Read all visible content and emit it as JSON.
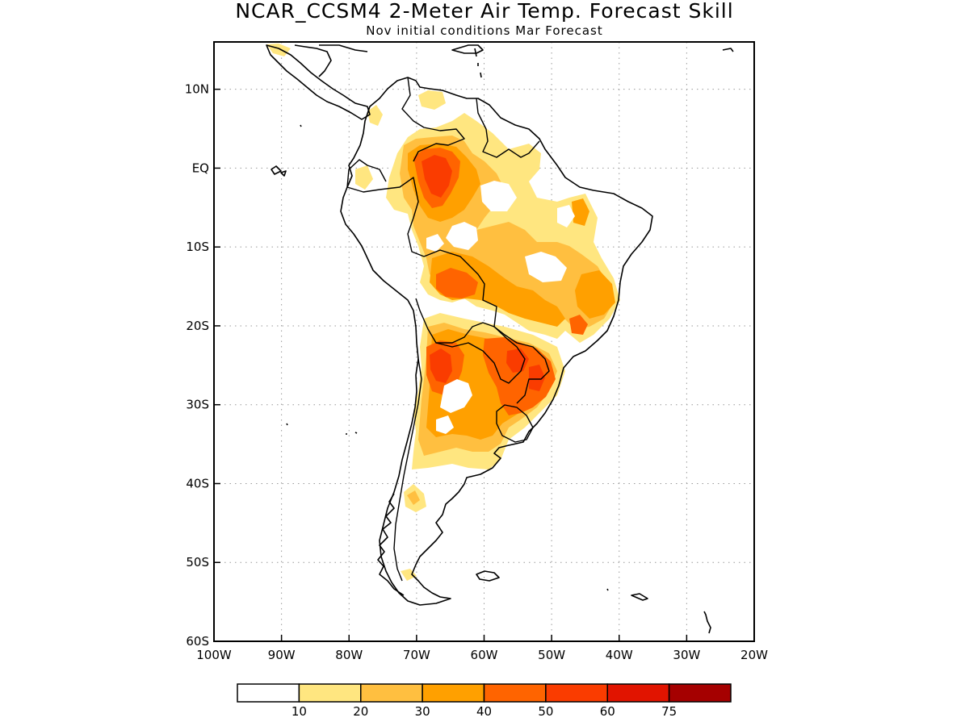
{
  "title": "NCAR_CCSM4 2-Meter Air Temp. Forecast Skill",
  "subtitle": "Nov initial conditions  Mar Forecast",
  "map": {
    "lon_range": [
      -100,
      -20
    ],
    "lat_range": [
      -60,
      16
    ],
    "lon_ticks": [
      {
        "value": -100,
        "label": "100W"
      },
      {
        "value": -90,
        "label": "90W"
      },
      {
        "value": -80,
        "label": "80W"
      },
      {
        "value": -70,
        "label": "70W"
      },
      {
        "value": -60,
        "label": "60W"
      },
      {
        "value": -50,
        "label": "50W"
      },
      {
        "value": -40,
        "label": "40W"
      },
      {
        "value": -30,
        "label": "30W"
      },
      {
        "value": -20,
        "label": "20W"
      }
    ],
    "lat_ticks": [
      {
        "value": 10,
        "label": "10N"
      },
      {
        "value": 0,
        "label": "EQ"
      },
      {
        "value": -10,
        "label": "10S"
      },
      {
        "value": -20,
        "label": "20S"
      },
      {
        "value": -30,
        "label": "30S"
      },
      {
        "value": -40,
        "label": "40S"
      },
      {
        "value": -50,
        "label": "50S"
      },
      {
        "value": -60,
        "label": "60S"
      }
    ],
    "gridlines": "dotted"
  },
  "legend": {
    "bins": [
      {
        "color": "#ffffff",
        "label": ""
      },
      {
        "color": "#ffe680",
        "label": "10"
      },
      {
        "color": "#ffbf40",
        "label": "20"
      },
      {
        "color": "#ffa000",
        "label": "30"
      },
      {
        "color": "#ff6400",
        "label": "40"
      },
      {
        "color": "#fa3c00",
        "label": "50"
      },
      {
        "color": "#e11400",
        "label": "60"
      },
      {
        "color": "#a50000",
        "label": "75"
      }
    ]
  }
}
